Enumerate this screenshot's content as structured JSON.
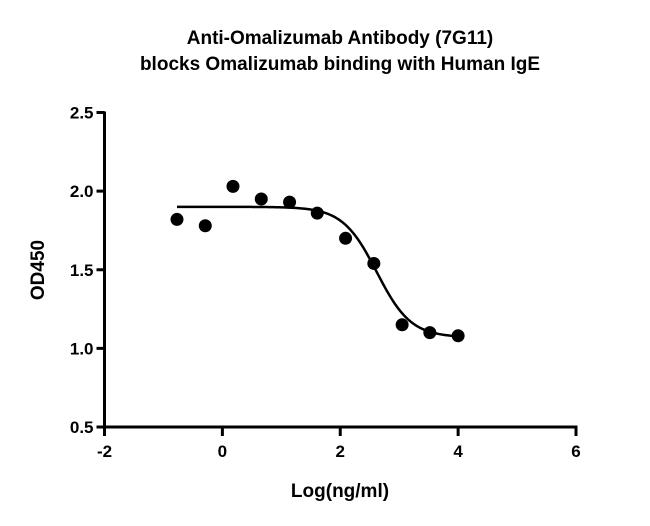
{
  "chart_data": {
    "type": "scatter",
    "title": [
      "Anti-Omalizumab Antibody (7G11)",
      "blocks Omalizumab binding with Human IgE"
    ],
    "xlabel": "Log(ng/ml)",
    "ylabel": "OD450",
    "xlim": [
      -2,
      6
    ],
    "ylim": [
      0.5,
      2.5
    ],
    "xticks": [
      -2,
      0,
      2,
      4,
      6
    ],
    "yticks": [
      0.5,
      1.0,
      1.5,
      2.0,
      2.5
    ],
    "xtick_labels": [
      "-2",
      "0",
      "2",
      "4",
      "6"
    ],
    "ytick_labels": [
      "0.5",
      "1.0",
      "1.5",
      "2.0",
      "2.5"
    ],
    "grid": false,
    "points": {
      "x": [
        -0.77,
        -0.29,
        0.18,
        0.66,
        1.14,
        1.61,
        2.09,
        2.57,
        3.05,
        3.52,
        4.0
      ],
      "y": [
        1.82,
        1.78,
        2.03,
        1.95,
        1.93,
        1.86,
        1.7,
        1.54,
        1.15,
        1.1,
        1.08
      ]
    },
    "fit": {
      "model": "4-parameter logistic",
      "top": 1.9,
      "bottom": 1.07,
      "logIC50": 2.62,
      "hill_slope": -1.5,
      "x_range": [
        -0.77,
        4.0
      ]
    },
    "colors": {
      "points": "#000000",
      "curve": "#000000",
      "axes": "#000000"
    }
  }
}
